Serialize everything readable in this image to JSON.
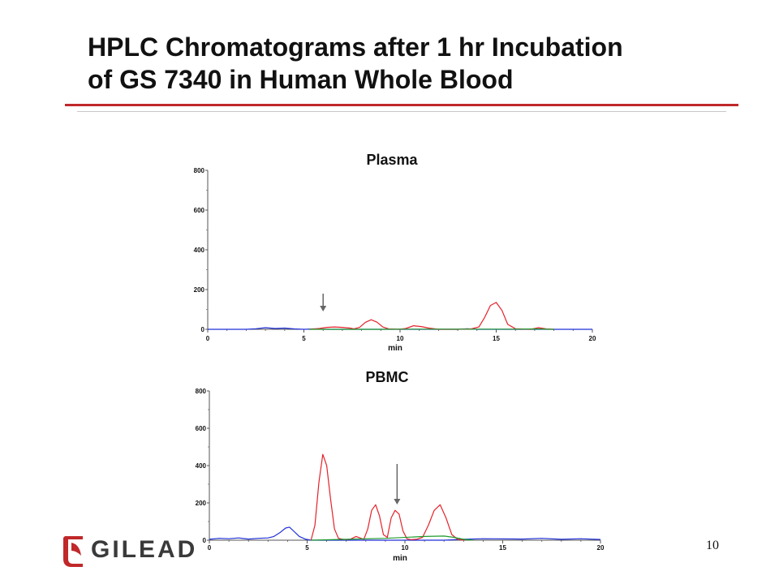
{
  "slide": {
    "title_line1": "HPLC Chromatograms after 1 hr Incubation",
    "title_line2": "of GS 7340 in Human Whole Blood",
    "page_number": "10",
    "logo_text": "GILEAD",
    "colors": {
      "accent_rule": "#c0282a",
      "blue": "#1f2fd8",
      "red": "#e4222a",
      "green": "#1e9b2c",
      "arrow": "#666666"
    }
  },
  "chart_data": [
    {
      "type": "line",
      "title": "Plasma",
      "xlabel": "min",
      "ylabel": "",
      "xlim": [
        0,
        20
      ],
      "ylim": [
        0,
        800
      ],
      "x_ticks": [
        0,
        5,
        10,
        15,
        20
      ],
      "y_ticks": [
        0,
        200,
        400,
        600,
        800
      ],
      "annotation_arrow_x": 6.0,
      "series": [
        {
          "color": "blue",
          "x": [
            0,
            1,
            2,
            2.5,
            3,
            3.5,
            4,
            4.5,
            5,
            5.5,
            6,
            6.5,
            7,
            7.5,
            8,
            9,
            10,
            11,
            12,
            13,
            13.5,
            14,
            15,
            16,
            16.5,
            17,
            18,
            19,
            20
          ],
          "y": [
            0,
            0,
            0,
            3,
            8,
            4,
            6,
            2,
            0,
            2,
            0,
            0,
            0,
            0,
            0,
            0,
            0,
            0,
            0,
            0,
            3,
            0,
            0,
            0,
            0,
            0,
            0,
            0,
            0
          ]
        },
        {
          "color": "red",
          "x": [
            5.3,
            5.8,
            6.2,
            6.6,
            7,
            7.4,
            7.6,
            7.9,
            8.2,
            8.5,
            8.8,
            9.1,
            9.4,
            10,
            10.3,
            10.7,
            11.1,
            11.5,
            12,
            13,
            13.7,
            14.1,
            14.4,
            14.7,
            15.0,
            15.3,
            15.6,
            16,
            16.8,
            17.2,
            17.6,
            18
          ],
          "y": [
            0,
            4,
            10,
            12,
            10,
            6,
            2,
            10,
            35,
            48,
            36,
            12,
            2,
            0,
            4,
            18,
            14,
            6,
            0,
            0,
            2,
            12,
            60,
            120,
            135,
            95,
            25,
            3,
            0,
            8,
            2,
            0
          ]
        },
        {
          "color": "green",
          "x": [
            5.3,
            7,
            8,
            9,
            10,
            11,
            12,
            13,
            14,
            15,
            16,
            17,
            18
          ],
          "y": [
            0,
            0,
            0,
            0,
            1,
            1,
            1,
            1,
            1,
            1,
            1,
            2,
            0
          ]
        }
      ]
    },
    {
      "type": "line",
      "title": "PBMC",
      "xlabel": "min",
      "ylabel": "",
      "xlim": [
        0,
        20
      ],
      "ylim": [
        0,
        800
      ],
      "x_ticks": [
        0,
        5,
        10,
        15,
        20
      ],
      "y_ticks": [
        0,
        200,
        400,
        600,
        800
      ],
      "annotation_arrow_x": 9.6,
      "series": [
        {
          "color": "blue",
          "x": [
            0,
            0.5,
            1,
            1.5,
            2,
            2.5,
            3,
            3.3,
            3.6,
            3.9,
            4.1,
            4.3,
            4.6,
            4.9,
            5.2,
            6,
            8,
            10,
            12,
            13,
            14,
            16,
            17,
            18,
            19,
            20
          ],
          "y": [
            5,
            10,
            8,
            12,
            6,
            10,
            12,
            20,
            40,
            65,
            70,
            50,
            20,
            6,
            0,
            0,
            0,
            0,
            0,
            5,
            8,
            6,
            10,
            5,
            8,
            4
          ]
        },
        {
          "color": "red",
          "x": [
            5.2,
            5.4,
            5.6,
            5.8,
            6.0,
            6.2,
            6.4,
            6.6,
            6.9,
            7.2,
            7.5,
            7.9,
            8.1,
            8.3,
            8.5,
            8.7,
            8.9,
            9.1,
            9.3,
            9.5,
            9.7,
            9.9,
            10.1,
            10.3,
            10.6,
            10.9,
            11.2,
            11.5,
            11.8,
            12.1,
            12.4,
            12.7,
            13.0
          ],
          "y": [
            0,
            80,
            310,
            460,
            400,
            220,
            60,
            10,
            3,
            5,
            20,
            5,
            60,
            160,
            190,
            130,
            30,
            15,
            120,
            160,
            140,
            50,
            8,
            3,
            5,
            15,
            80,
            160,
            190,
            120,
            30,
            5,
            0
          ]
        },
        {
          "color": "green",
          "x": [
            5.2,
            7,
            9,
            11,
            12,
            12.5,
            13,
            13.5
          ],
          "y": [
            0,
            5,
            10,
            20,
            22,
            15,
            5,
            0
          ]
        }
      ]
    }
  ]
}
